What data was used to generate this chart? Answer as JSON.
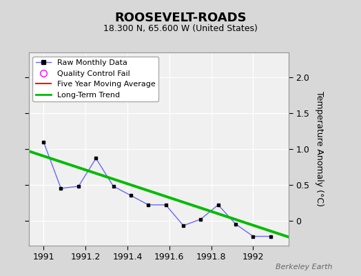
{
  "title": "ROOSEVELT-ROADS",
  "subtitle": "18.300 N, 65.600 W (United States)",
  "ylabel": "Temperature Anomaly (°C)",
  "watermark": "Berkeley Earth",
  "background_color": "#d8d8d8",
  "plot_background_color": "#f0f0f0",
  "raw_x": [
    1991.0,
    1991.083,
    1991.167,
    1991.25,
    1991.333,
    1991.417,
    1991.5,
    1991.583,
    1991.667,
    1991.75,
    1991.833,
    1991.917,
    1992.0,
    1992.083
  ],
  "raw_y": [
    1.1,
    0.45,
    0.48,
    0.87,
    0.48,
    0.35,
    0.22,
    0.22,
    -0.07,
    0.02,
    0.22,
    -0.05,
    -0.22,
    -0.22
  ],
  "trend_x": [
    1990.93,
    1992.17
  ],
  "trend_y": [
    0.97,
    -0.23
  ],
  "ylim": [
    -0.35,
    2.35
  ],
  "xlim": [
    1990.93,
    1992.17
  ],
  "yticks": [
    0,
    0.5,
    1.0,
    1.5,
    2.0
  ],
  "xticks": [
    1991,
    1991.2,
    1991.4,
    1991.6,
    1991.8,
    1992
  ],
  "xtick_labels": [
    "1991",
    "1991.2",
    "1991.4",
    "1991.6",
    "1991.8",
    "1992"
  ],
  "raw_line_color": "#6666ff",
  "raw_marker_color": "#000000",
  "trend_color": "#00bb00",
  "moving_avg_color": "#ff0000",
  "qc_fail_color": "#ff00ff",
  "legend_loc": "upper left"
}
